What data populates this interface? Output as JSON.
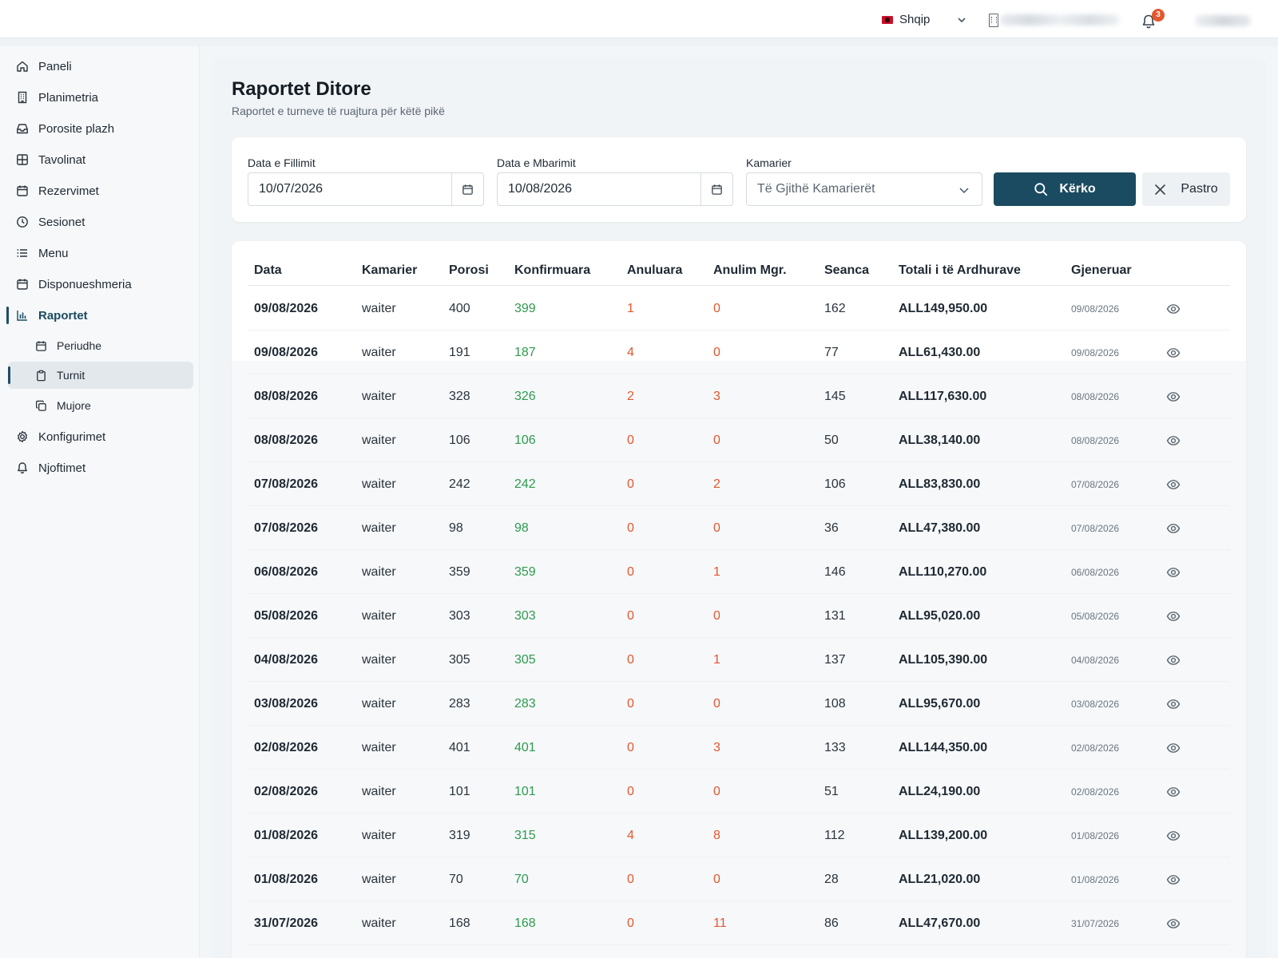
{
  "topbar": {
    "language": "Shqip",
    "notification_count": "3"
  },
  "sidebar": {
    "items": [
      {
        "label": "Paneli",
        "icon": "home-icon"
      },
      {
        "label": "Planimetria",
        "icon": "building-icon"
      },
      {
        "label": "Porosite plazh",
        "icon": "inbox-icon"
      },
      {
        "label": "Tavolinat",
        "icon": "table-grid-icon"
      },
      {
        "label": "Rezervimet",
        "icon": "calendar-icon"
      },
      {
        "label": "Sesionet",
        "icon": "clock-icon"
      },
      {
        "label": "Menu",
        "icon": "list-icon"
      },
      {
        "label": "Disponueshmeria",
        "icon": "calendar-icon"
      },
      {
        "label": "Raportet",
        "icon": "bar-chart-icon"
      },
      {
        "label": "Periudhe",
        "icon": "calendar-icon"
      },
      {
        "label": "Turnit",
        "icon": "clipboard-icon"
      },
      {
        "label": "Mujore",
        "icon": "copy-icon"
      },
      {
        "label": "Konfigurimet",
        "icon": "gear-icon"
      },
      {
        "label": "Njoftimet",
        "icon": "bell-icon"
      }
    ]
  },
  "page": {
    "title": "Raportet Ditore",
    "subtitle": "Raportet e turneve të ruajtura për këtë pikë"
  },
  "filters": {
    "start_label": "Data e Fillimit",
    "start_value": "10/07/2026",
    "end_label": "Data e Mbarimit",
    "end_value": "10/08/2026",
    "waiter_label": "Kamarier",
    "waiter_value": "Të Gjithë Kamarierët",
    "search_label": "Kërko",
    "clear_label": "Pastro"
  },
  "table": {
    "headers": [
      "Data",
      "Kamarier",
      "Porosi",
      "Konfirmuara",
      "Anuluara",
      "Anulim Mgr.",
      "Seanca",
      "Totali i të Ardhurave",
      "Gjeneruar"
    ],
    "rows": [
      {
        "date": "09/08/2026",
        "waiter": "waiter",
        "orders": "400",
        "confirmed": "399",
        "cancelled": "1",
        "mgr": "0",
        "sessions": "162",
        "total": "ALL149,950.00",
        "generated": "09/08/2026"
      },
      {
        "date": "09/08/2026",
        "waiter": "waiter",
        "orders": "191",
        "confirmed": "187",
        "cancelled": "4",
        "mgr": "0",
        "sessions": "77",
        "total": "ALL61,430.00",
        "generated": "09/08/2026"
      },
      {
        "date": "08/08/2026",
        "waiter": "waiter",
        "orders": "328",
        "confirmed": "326",
        "cancelled": "2",
        "mgr": "3",
        "sessions": "145",
        "total": "ALL117,630.00",
        "generated": "08/08/2026"
      },
      {
        "date": "08/08/2026",
        "waiter": "waiter",
        "orders": "106",
        "confirmed": "106",
        "cancelled": "0",
        "mgr": "0",
        "sessions": "50",
        "total": "ALL38,140.00",
        "generated": "08/08/2026"
      },
      {
        "date": "07/08/2026",
        "waiter": "waiter",
        "orders": "242",
        "confirmed": "242",
        "cancelled": "0",
        "mgr": "2",
        "sessions": "106",
        "total": "ALL83,830.00",
        "generated": "07/08/2026"
      },
      {
        "date": "07/08/2026",
        "waiter": "waiter",
        "orders": "98",
        "confirmed": "98",
        "cancelled": "0",
        "mgr": "0",
        "sessions": "36",
        "total": "ALL47,380.00",
        "generated": "07/08/2026"
      },
      {
        "date": "06/08/2026",
        "waiter": "waiter",
        "orders": "359",
        "confirmed": "359",
        "cancelled": "0",
        "mgr": "1",
        "sessions": "146",
        "total": "ALL110,270.00",
        "generated": "06/08/2026"
      },
      {
        "date": "05/08/2026",
        "waiter": "waiter",
        "orders": "303",
        "confirmed": "303",
        "cancelled": "0",
        "mgr": "0",
        "sessions": "131",
        "total": "ALL95,020.00",
        "generated": "05/08/2026"
      },
      {
        "date": "04/08/2026",
        "waiter": "waiter",
        "orders": "305",
        "confirmed": "305",
        "cancelled": "0",
        "mgr": "1",
        "sessions": "137",
        "total": "ALL105,390.00",
        "generated": "04/08/2026"
      },
      {
        "date": "03/08/2026",
        "waiter": "waiter",
        "orders": "283",
        "confirmed": "283",
        "cancelled": "0",
        "mgr": "0",
        "sessions": "108",
        "total": "ALL95,670.00",
        "generated": "03/08/2026"
      },
      {
        "date": "02/08/2026",
        "waiter": "waiter",
        "orders": "401",
        "confirmed": "401",
        "cancelled": "0",
        "mgr": "3",
        "sessions": "133",
        "total": "ALL144,350.00",
        "generated": "02/08/2026"
      },
      {
        "date": "02/08/2026",
        "waiter": "waiter",
        "orders": "101",
        "confirmed": "101",
        "cancelled": "0",
        "mgr": "0",
        "sessions": "51",
        "total": "ALL24,190.00",
        "generated": "02/08/2026"
      },
      {
        "date": "01/08/2026",
        "waiter": "waiter",
        "orders": "319",
        "confirmed": "315",
        "cancelled": "4",
        "mgr": "8",
        "sessions": "112",
        "total": "ALL139,200.00",
        "generated": "01/08/2026"
      },
      {
        "date": "01/08/2026",
        "waiter": "waiter",
        "orders": "70",
        "confirmed": "70",
        "cancelled": "0",
        "mgr": "0",
        "sessions": "28",
        "total": "ALL21,020.00",
        "generated": "01/08/2026"
      },
      {
        "date": "31/07/2026",
        "waiter": "waiter",
        "orders": "168",
        "confirmed": "168",
        "cancelled": "0",
        "mgr": "11",
        "sessions": "86",
        "total": "ALL47,670.00",
        "generated": "31/07/2026"
      }
    ]
  },
  "colors": {
    "primary": "#1b4b60",
    "positive": "#2e9b4f",
    "negative": "#e4572e"
  }
}
